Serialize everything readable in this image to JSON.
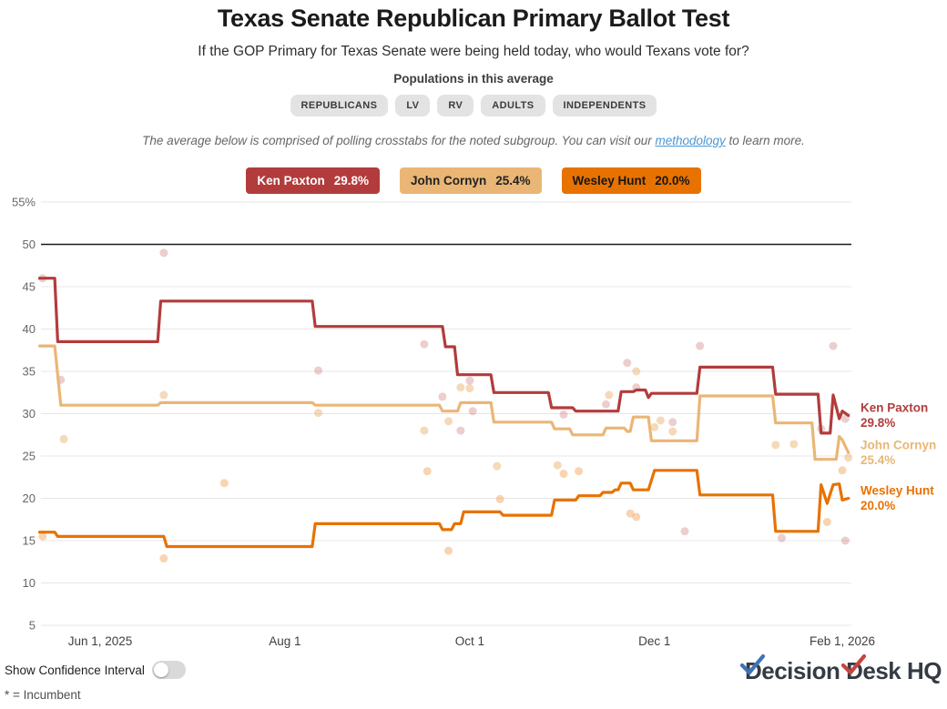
{
  "header": {
    "title": "Texas Senate Republican Primary Ballot Test",
    "subtitle": "If the GOP Primary for Texas Senate were being held today, who would Texans vote for?"
  },
  "populations": {
    "heading": "Populations in this average",
    "pills": [
      "REPUBLICANS",
      "LV",
      "RV",
      "ADULTS",
      "INDEPENDENTS"
    ]
  },
  "methodology": {
    "prefix": "The average below is comprised of polling crosstabs for the noted subgroup. You can visit our ",
    "link_text": "methodology",
    "suffix": " to learn more."
  },
  "legend": [
    {
      "name": "Ken Paxton",
      "value": "29.8%",
      "bg": "#b23c3c",
      "fg": "#ffffff"
    },
    {
      "name": "John Cornyn",
      "value": "25.4%",
      "bg": "#eab676",
      "fg": "#222222"
    },
    {
      "name": "Wesley Hunt",
      "value": "20.0%",
      "bg": "#e87200",
      "fg": "#161616"
    }
  ],
  "footer": {
    "toggle_label": "Show Confidence Interval",
    "toggle_state": "off",
    "incumbent_note": "* = Incumbent",
    "logo": {
      "d1": "D",
      "rest1": "ecision ",
      "d2": "D",
      "rest2": "esk",
      "rest3": " HQ"
    }
  },
  "chart_data": {
    "type": "line",
    "title": "Texas Senate Republican Primary Ballot Test",
    "x_axis": {
      "type": "date",
      "range": [
        "2025-05-12",
        "2026-02-03"
      ],
      "ticks": [
        {
          "date": "2025-06-01",
          "label": "Jun 1, 2025"
        },
        {
          "date": "2025-08-01",
          "label": "Aug 1"
        },
        {
          "date": "2025-10-01",
          "label": "Oct 1"
        },
        {
          "date": "2025-12-01",
          "label": "Dec 1"
        },
        {
          "date": "2026-02-01",
          "label": "Feb 1, 2026"
        }
      ]
    },
    "y_axis": {
      "min": 5,
      "max": 55,
      "tick_step": 5,
      "ticks": [
        55,
        50,
        45,
        40,
        35,
        30,
        25,
        20,
        15,
        10,
        5
      ],
      "tick_labels": [
        "55%",
        "50",
        "45",
        "40",
        "35",
        "30",
        "25",
        "20",
        "15",
        "10",
        "5"
      ],
      "threshold_value": 50,
      "grid_color": "#e7e7e7",
      "threshold_color": "#1a1a1a"
    },
    "series": [
      {
        "name": "Ken Paxton",
        "current_label": "29.8%",
        "color": "#b23c3c",
        "points": [
          [
            "2025-05-12",
            46.0
          ],
          [
            "2025-05-17",
            46.0
          ],
          [
            "2025-05-18",
            38.5
          ],
          [
            "2025-06-20",
            38.5
          ],
          [
            "2025-06-21",
            43.3
          ],
          [
            "2025-08-10",
            43.3
          ],
          [
            "2025-08-11",
            40.3
          ],
          [
            "2025-09-22",
            40.3
          ],
          [
            "2025-09-23",
            37.9
          ],
          [
            "2025-09-26",
            37.9
          ],
          [
            "2025-09-27",
            34.6
          ],
          [
            "2025-10-08",
            34.6
          ],
          [
            "2025-10-09",
            32.5
          ],
          [
            "2025-10-27",
            32.5
          ],
          [
            "2025-10-28",
            30.7
          ],
          [
            "2025-11-04",
            30.7
          ],
          [
            "2025-11-05",
            30.3
          ],
          [
            "2025-11-19",
            30.3
          ],
          [
            "2025-11-20",
            32.6
          ],
          [
            "2025-11-24",
            32.6
          ],
          [
            "2025-11-25",
            32.8
          ],
          [
            "2025-11-28",
            32.8
          ],
          [
            "2025-11-29",
            31.9
          ],
          [
            "2025-11-30",
            32.4
          ],
          [
            "2025-12-15",
            32.4
          ],
          [
            "2025-12-16",
            35.5
          ],
          [
            "2026-01-09",
            35.5
          ],
          [
            "2026-01-10",
            32.3
          ],
          [
            "2026-01-24",
            32.3
          ],
          [
            "2026-01-25",
            27.7
          ],
          [
            "2026-01-28",
            27.7
          ],
          [
            "2026-01-29",
            32.2
          ],
          [
            "2026-01-31",
            29.4
          ],
          [
            "2026-02-01",
            30.3
          ],
          [
            "2026-02-03",
            29.8
          ]
        ]
      },
      {
        "name": "John Cornyn",
        "current_label": "25.4%",
        "color": "#eab676",
        "points": [
          [
            "2025-05-12",
            38.0
          ],
          [
            "2025-05-17",
            38.0
          ],
          [
            "2025-05-19",
            31.0
          ],
          [
            "2025-06-20",
            31.0
          ],
          [
            "2025-06-21",
            31.3
          ],
          [
            "2025-08-10",
            31.3
          ],
          [
            "2025-08-11",
            31.0
          ],
          [
            "2025-09-21",
            31.0
          ],
          [
            "2025-09-22",
            30.3
          ],
          [
            "2025-09-27",
            30.3
          ],
          [
            "2025-09-28",
            31.3
          ],
          [
            "2025-10-08",
            31.3
          ],
          [
            "2025-10-09",
            29.0
          ],
          [
            "2025-10-28",
            29.0
          ],
          [
            "2025-10-29",
            28.2
          ],
          [
            "2025-11-03",
            28.2
          ],
          [
            "2025-11-04",
            27.5
          ],
          [
            "2025-11-14",
            27.5
          ],
          [
            "2025-11-15",
            28.3
          ],
          [
            "2025-11-21",
            28.3
          ],
          [
            "2025-11-22",
            27.9
          ],
          [
            "2025-11-23",
            27.9
          ],
          [
            "2025-11-24",
            29.6
          ],
          [
            "2025-11-29",
            29.6
          ],
          [
            "2025-11-30",
            26.8
          ],
          [
            "2025-12-15",
            26.8
          ],
          [
            "2025-12-16",
            32.1
          ],
          [
            "2026-01-09",
            32.1
          ],
          [
            "2026-01-10",
            28.9
          ],
          [
            "2026-01-22",
            28.9
          ],
          [
            "2026-01-23",
            24.6
          ],
          [
            "2026-01-30",
            24.6
          ],
          [
            "2026-01-31",
            27.3
          ],
          [
            "2026-02-01",
            26.9
          ],
          [
            "2026-02-03",
            25.4
          ]
        ]
      },
      {
        "name": "Wesley Hunt",
        "current_label": "20.0%",
        "color": "#e87200",
        "points": [
          [
            "2025-05-12",
            16.0
          ],
          [
            "2025-05-17",
            16.0
          ],
          [
            "2025-05-18",
            15.5
          ],
          [
            "2025-06-22",
            15.5
          ],
          [
            "2025-06-23",
            14.3
          ],
          [
            "2025-08-10",
            14.3
          ],
          [
            "2025-08-11",
            17.0
          ],
          [
            "2025-09-21",
            17.0
          ],
          [
            "2025-09-22",
            16.3
          ],
          [
            "2025-09-25",
            16.3
          ],
          [
            "2025-09-26",
            17.0
          ],
          [
            "2025-09-28",
            17.0
          ],
          [
            "2025-09-29",
            18.4
          ],
          [
            "2025-10-11",
            18.4
          ],
          [
            "2025-10-12",
            18.0
          ],
          [
            "2025-10-28",
            18.0
          ],
          [
            "2025-10-29",
            19.8
          ],
          [
            "2025-11-05",
            19.8
          ],
          [
            "2025-11-06",
            20.3
          ],
          [
            "2025-11-13",
            20.3
          ],
          [
            "2025-11-14",
            20.7
          ],
          [
            "2025-11-17",
            20.7
          ],
          [
            "2025-11-18",
            21.0
          ],
          [
            "2025-11-19",
            21.0
          ],
          [
            "2025-11-20",
            21.8
          ],
          [
            "2025-11-23",
            21.8
          ],
          [
            "2025-11-24",
            21.0
          ],
          [
            "2025-11-29",
            21.0
          ],
          [
            "2025-12-01",
            23.3
          ],
          [
            "2025-12-15",
            23.3
          ],
          [
            "2025-12-16",
            20.4
          ],
          [
            "2026-01-09",
            20.4
          ],
          [
            "2026-01-10",
            16.1
          ],
          [
            "2026-01-24",
            16.1
          ],
          [
            "2026-01-25",
            21.6
          ],
          [
            "2026-01-27",
            19.4
          ],
          [
            "2026-01-29",
            21.6
          ],
          [
            "2026-01-31",
            21.7
          ],
          [
            "2026-02-01",
            19.8
          ],
          [
            "2026-02-03",
            20.0
          ]
        ]
      }
    ],
    "scatter": [
      {
        "date": "2025-05-13",
        "value": 46.0,
        "series": "Ken Paxton"
      },
      {
        "date": "2025-05-13",
        "value": 15.5,
        "series": "Wesley Hunt"
      },
      {
        "date": "2025-05-19",
        "value": 34.0,
        "series": "Ken Paxton"
      },
      {
        "date": "2025-05-20",
        "value": 27.0,
        "series": "John Cornyn"
      },
      {
        "date": "2025-06-22",
        "value": 49.0,
        "series": "Ken Paxton"
      },
      {
        "date": "2025-06-22",
        "value": 32.2,
        "series": "John Cornyn"
      },
      {
        "date": "2025-06-22",
        "value": 12.9,
        "series": "Wesley Hunt"
      },
      {
        "date": "2025-07-12",
        "value": 21.8,
        "series": "Wesley Hunt"
      },
      {
        "date": "2025-08-12",
        "value": 35.1,
        "series": "Ken Paxton"
      },
      {
        "date": "2025-08-12",
        "value": 30.1,
        "series": "John Cornyn"
      },
      {
        "date": "2025-09-16",
        "value": 38.2,
        "series": "Ken Paxton"
      },
      {
        "date": "2025-09-16",
        "value": 28.0,
        "series": "John Cornyn"
      },
      {
        "date": "2025-09-17",
        "value": 23.2,
        "series": "Wesley Hunt"
      },
      {
        "date": "2025-09-22",
        "value": 32.0,
        "series": "Ken Paxton"
      },
      {
        "date": "2025-09-24",
        "value": 29.1,
        "series": "John Cornyn"
      },
      {
        "date": "2025-09-24",
        "value": 13.8,
        "series": "Wesley Hunt"
      },
      {
        "date": "2025-09-28",
        "value": 33.1,
        "series": "John Cornyn"
      },
      {
        "date": "2025-09-28",
        "value": 28.0,
        "series": "Ken Paxton"
      },
      {
        "date": "2025-10-01",
        "value": 33.9,
        "series": "Ken Paxton"
      },
      {
        "date": "2025-10-01",
        "value": 33.0,
        "series": "John Cornyn"
      },
      {
        "date": "2025-10-02",
        "value": 30.3,
        "series": "Ken Paxton"
      },
      {
        "date": "2025-10-10",
        "value": 23.8,
        "series": "John Cornyn"
      },
      {
        "date": "2025-10-11",
        "value": 19.9,
        "series": "Wesley Hunt"
      },
      {
        "date": "2025-10-30",
        "value": 23.9,
        "series": "John Cornyn"
      },
      {
        "date": "2025-11-01",
        "value": 29.9,
        "series": "Ken Paxton"
      },
      {
        "date": "2025-11-01",
        "value": 22.9,
        "series": "Wesley Hunt"
      },
      {
        "date": "2025-11-06",
        "value": 23.2,
        "series": "Wesley Hunt"
      },
      {
        "date": "2025-11-15",
        "value": 31.1,
        "series": "Ken Paxton"
      },
      {
        "date": "2025-11-16",
        "value": 32.2,
        "series": "John Cornyn"
      },
      {
        "date": "2025-11-22",
        "value": 36.0,
        "series": "Ken Paxton"
      },
      {
        "date": "2025-11-23",
        "value": 18.2,
        "series": "Wesley Hunt"
      },
      {
        "date": "2025-11-25",
        "value": 35.0,
        "series": "John Cornyn"
      },
      {
        "date": "2025-11-25",
        "value": 33.1,
        "series": "Ken Paxton"
      },
      {
        "date": "2025-11-25",
        "value": 17.8,
        "series": "Wesley Hunt"
      },
      {
        "date": "2025-12-01",
        "value": 28.4,
        "series": "John Cornyn"
      },
      {
        "date": "2025-12-03",
        "value": 29.2,
        "series": "John Cornyn"
      },
      {
        "date": "2025-12-07",
        "value": 29.0,
        "series": "Ken Paxton"
      },
      {
        "date": "2025-12-07",
        "value": 27.9,
        "series": "John Cornyn"
      },
      {
        "date": "2025-12-11",
        "value": 16.1,
        "series": "Ken Paxton"
      },
      {
        "date": "2025-12-16",
        "value": 38.0,
        "series": "Ken Paxton"
      },
      {
        "date": "2026-01-10",
        "value": 26.3,
        "series": "John Cornyn"
      },
      {
        "date": "2026-01-12",
        "value": 15.3,
        "series": "Ken Paxton"
      },
      {
        "date": "2026-01-16",
        "value": 26.4,
        "series": "John Cornyn"
      },
      {
        "date": "2026-01-25",
        "value": 28.2,
        "series": "Ken Paxton"
      },
      {
        "date": "2026-01-27",
        "value": 17.2,
        "series": "Wesley Hunt"
      },
      {
        "date": "2026-01-29",
        "value": 38.0,
        "series": "Ken Paxton"
      },
      {
        "date": "2026-02-01",
        "value": 23.3,
        "series": "Wesley Hunt"
      },
      {
        "date": "2026-02-02",
        "value": 29.4,
        "series": "Ken Paxton"
      },
      {
        "date": "2026-02-02",
        "value": 15.0,
        "series": "Ken Paxton"
      },
      {
        "date": "2026-02-03",
        "value": 24.8,
        "series": "John Cornyn"
      }
    ],
    "legend_position": "top",
    "grid": true
  }
}
